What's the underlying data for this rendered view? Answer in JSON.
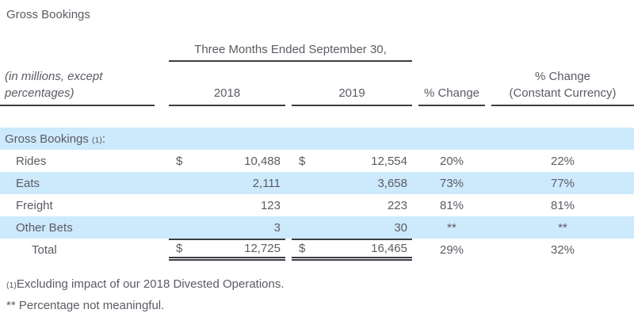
{
  "title": "Gross Bookings",
  "table": {
    "period_header": "Three Months Ended September 30,",
    "axis_note_line1": "(in millions, except",
    "axis_note_line2": "percentages)",
    "columns": {
      "y2018": "2018",
      "y2019": "2019",
      "pct_change": "% Change",
      "pct_change_cc_line1": "% Change",
      "pct_change_cc_line2": "(Constant Currency)"
    },
    "section": {
      "label": "Gross Bookings ",
      "footnote_ref": "(1)",
      "colon": ":"
    },
    "rows": [
      {
        "label": "Rides",
        "cur2018": "$",
        "v2018": "10,488",
        "cur2019": "$",
        "v2019": "12,554",
        "pct": "20%",
        "pct_cc": "22%"
      },
      {
        "label": "Eats",
        "v2018": "2,111",
        "v2019": "3,658",
        "pct": "73%",
        "pct_cc": "77%"
      },
      {
        "label": "Freight",
        "v2018": "123",
        "v2019": "223",
        "pct": "81%",
        "pct_cc": "81%"
      },
      {
        "label": "Other Bets",
        "v2018": "3",
        "v2019": "30",
        "pct": "**",
        "pct_cc": "**"
      }
    ],
    "total": {
      "label": "Total",
      "cur2018": "$",
      "v2018": "12,725",
      "cur2019": "$",
      "v2019": "16,465",
      "pct": "29%",
      "pct_cc": "32%"
    }
  },
  "footnotes": {
    "note1": {
      "marker": "(1)",
      "text": "Excluding impact of our 2018 Divested Operations."
    },
    "note2": {
      "marker": "**",
      "text": " Percentage not meaningful."
    }
  },
  "colors": {
    "highlight": "#cdeafc",
    "text": "#5b5b64",
    "border": "#3d3d44"
  }
}
